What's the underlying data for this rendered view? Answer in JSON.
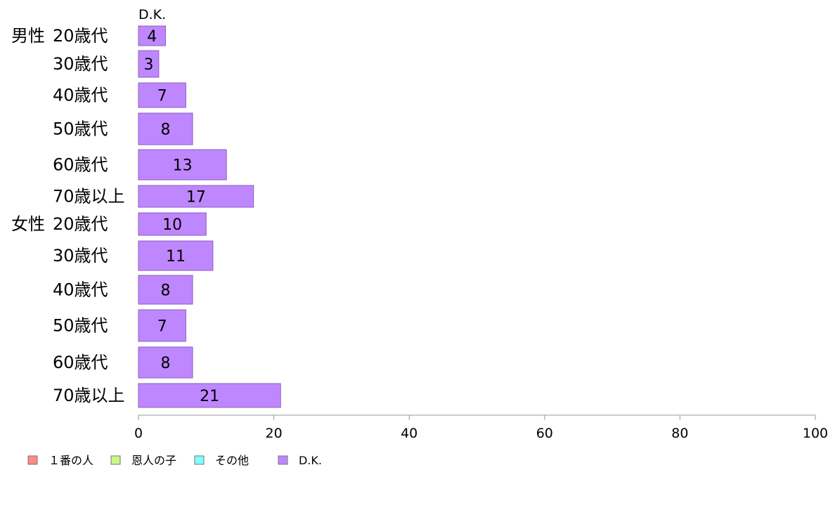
{
  "chart_data": {
    "type": "bar",
    "orientation": "horizontal",
    "series_title": "D.K.",
    "groups": [
      {
        "label": "男性",
        "categories": [
          "20歳代",
          "30歳代",
          "40歳代",
          "50歳代",
          "60歳代",
          "70歳以上"
        ]
      },
      {
        "label": "女性",
        "categories": [
          "20歳代",
          "30歳代",
          "40歳代",
          "50歳代",
          "60歳代",
          "70歳以上"
        ]
      }
    ],
    "series": [
      {
        "name": "D.K.",
        "color": "#bf87ff",
        "values": [
          4,
          3,
          7,
          8,
          13,
          17,
          10,
          11,
          8,
          7,
          8,
          21
        ]
      }
    ],
    "xlim": [
      0,
      100
    ],
    "xticks": [
      "0",
      "20",
      "40",
      "60",
      "80",
      "100"
    ],
    "grid": false,
    "legend_position": "bottom-left",
    "legend": [
      {
        "label": "１番の人",
        "color": "#ff8a8a"
      },
      {
        "label": "恩人の子",
        "color": "#c9f78a"
      },
      {
        "label": "その他",
        "color": "#80ffff"
      },
      {
        "label": "D.K.",
        "color": "#bf87ff"
      }
    ]
  }
}
